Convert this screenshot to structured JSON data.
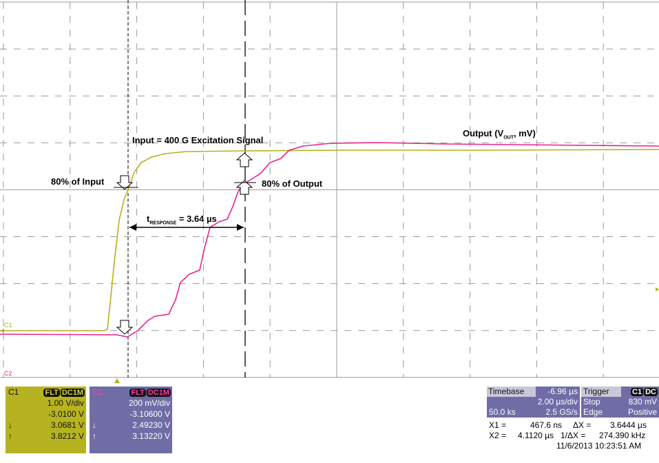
{
  "markers": {
    "c1": "C1",
    "c2": "C2"
  },
  "annotations": {
    "input_signal": "Input = 400 G Excitation Signal",
    "output_main": "Output (V",
    "output_sub": "OUT",
    "output_end": ", mV)",
    "input_80": "80% of Input",
    "output_80": "80% of Output",
    "t_main": "t",
    "t_sub": "RESPONSE",
    "t_value": " = 3.64 µs"
  },
  "channels": [
    {
      "label": "C1",
      "badges": [
        "FLT",
        "DC1M"
      ],
      "rows": [
        "1.00 V/div",
        "-3.0100 V",
        "3.0681 V",
        "3.8212 V"
      ],
      "arrows": [
        "↓",
        "↑"
      ]
    },
    {
      "label": "C1",
      "badges": [
        "FLT",
        "DC1M"
      ],
      "rows": [
        "200 mV/div",
        "-3.10600 V",
        "2.49230 V",
        "3.13220 V"
      ],
      "arrows": [
        "↓",
        "↑"
      ]
    }
  ],
  "timebase": {
    "label": "Timebase",
    "offset": "-6.96 µs",
    "scale": "2.00 µs/div",
    "samples": "50.0 ks",
    "rate": "2.5 GS/s"
  },
  "trigger": {
    "label": "Trigger",
    "badges": [
      "C1",
      "DC"
    ],
    "mode": "Stop",
    "level": "830 mV",
    "kind": "Edge",
    "slope": "Positive"
  },
  "measurements": {
    "x1_label": "X1 =",
    "x1": "467.6 ns",
    "dx_label": "ΔX =",
    "dx": "3.6444 µs",
    "x2_label": "X2 =",
    "x2": "4.1120 µs",
    "inv_label": "1/ΔX =",
    "inv": "274.390 kHz",
    "timestamp": "11/6/2013 10:23:51 AM"
  }
}
